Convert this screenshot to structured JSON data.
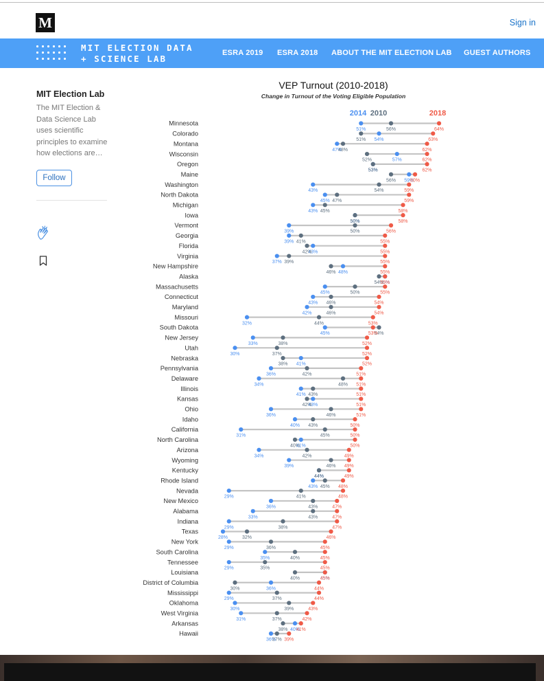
{
  "header": {
    "logo_letter": "M",
    "sign_in": "Sign in"
  },
  "publication": {
    "title_line1": "MIT ELECTION DATA",
    "title_line2": "+ SCIENCE LAB",
    "nav": [
      "ESRA 2019",
      "ESRA 2018",
      "ABOUT THE MIT ELECTION LAB",
      "GUEST AUTHORS"
    ]
  },
  "sidebar": {
    "author": "MIT Election Lab",
    "bio": "The MIT Election & Data Science Lab uses scientific principles to examine how elections are…",
    "follow": "Follow",
    "clap_icon": "clap-icon",
    "bookmark_icon": "bookmark-icon"
  },
  "colors": {
    "accent": "#4ea0f7",
    "y2014": "#4a8ff0",
    "y2010": "#5d6f7f",
    "y2018": "#ef5a47",
    "connector": "#c4c4c4"
  },
  "chart_data": {
    "type": "dot-range",
    "title": "VEP Turnout (2010-2018)",
    "subtitle": "Change in Turnout of the Voting Eligible Population",
    "legend": [
      {
        "name": "2014",
        "color": "#4a8ff0"
      },
      {
        "name": "2010",
        "color": "#5d6f7f"
      },
      {
        "name": "2018",
        "color": "#ef5a47"
      }
    ],
    "series_keys": [
      "y2014",
      "y2010",
      "y2018"
    ],
    "rows": [
      {
        "state": "Minnesota",
        "y2014": 51,
        "y2010": 56,
        "y2018": 64
      },
      {
        "state": "Colorado",
        "y2014": 54,
        "y2010": 51,
        "y2018": 63
      },
      {
        "state": "Montana",
        "y2014": 47,
        "y2010": 48,
        "y2018": 62
      },
      {
        "state": "Wisconsin",
        "y2014": 57,
        "y2010": 52,
        "y2018": 62
      },
      {
        "state": "Oregon",
        "y2014": 53,
        "y2010": 53,
        "y2018": 62
      },
      {
        "state": "Maine",
        "y2014": 59,
        "y2010": 56,
        "y2018": 60
      },
      {
        "state": "Washington",
        "y2014": 43,
        "y2010": 54,
        "y2018": 59
      },
      {
        "state": "North Dakota",
        "y2014": 45,
        "y2010": 47,
        "y2018": 59
      },
      {
        "state": "Michigan",
        "y2014": 43,
        "y2010": 45,
        "y2018": 58
      },
      {
        "state": "Iowa",
        "y2014": 50,
        "y2010": 50,
        "y2018": 58
      },
      {
        "state": "Vermont",
        "y2014": 39,
        "y2010": 50,
        "y2018": 56
      },
      {
        "state": "Georgia",
        "y2014": 39,
        "y2010": 41,
        "y2018": 55
      },
      {
        "state": "Florida",
        "y2014": 43,
        "y2010": 42,
        "y2018": 55
      },
      {
        "state": "Virginia",
        "y2014": 37,
        "y2010": 39,
        "y2018": 55
      },
      {
        "state": "New Hampshire",
        "y2014": 48,
        "y2010": 46,
        "y2018": 55
      },
      {
        "state": "Alaska",
        "y2014": 55,
        "y2010": 54,
        "y2018": 55
      },
      {
        "state": "Massachusetts",
        "y2014": 45,
        "y2010": 50,
        "y2018": 55
      },
      {
        "state": "Connecticut",
        "y2014": 43,
        "y2010": 46,
        "y2018": 54
      },
      {
        "state": "Maryland",
        "y2014": 42,
        "y2010": 46,
        "y2018": 54
      },
      {
        "state": "Missouri",
        "y2014": 32,
        "y2010": 44,
        "y2018": 53
      },
      {
        "state": "South Dakota",
        "y2014": 45,
        "y2010": 54,
        "y2018": 53
      },
      {
        "state": "New Jersey",
        "y2014": 33,
        "y2010": 38,
        "y2018": 52
      },
      {
        "state": "Utah",
        "y2014": 30,
        "y2010": 37,
        "y2018": 52
      },
      {
        "state": "Nebraska",
        "y2014": 41,
        "y2010": 38,
        "y2018": 52
      },
      {
        "state": "Pennsylvania",
        "y2014": 36,
        "y2010": 42,
        "y2018": 51
      },
      {
        "state": "Delaware",
        "y2014": 34,
        "y2010": 48,
        "y2018": 51
      },
      {
        "state": "Illinois",
        "y2014": 41,
        "y2010": 43,
        "y2018": 51
      },
      {
        "state": "Kansas",
        "y2014": 43,
        "y2010": 42,
        "y2018": 51
      },
      {
        "state": "Ohio",
        "y2014": 36,
        "y2010": 46,
        "y2018": 51
      },
      {
        "state": "Idaho",
        "y2014": 40,
        "y2010": 43,
        "y2018": 50
      },
      {
        "state": "California",
        "y2014": 31,
        "y2010": 45,
        "y2018": 50
      },
      {
        "state": "North Carolina",
        "y2014": 41,
        "y2010": 40,
        "y2018": 50
      },
      {
        "state": "Arizona",
        "y2014": 34,
        "y2010": 42,
        "y2018": 49
      },
      {
        "state": "Wyoming",
        "y2014": 39,
        "y2010": 46,
        "y2018": 49
      },
      {
        "state": "Kentucky",
        "y2014": 44,
        "y2010": 44,
        "y2018": 49
      },
      {
        "state": "Rhode Island",
        "y2014": 43,
        "y2010": 45,
        "y2018": 48
      },
      {
        "state": "Nevada",
        "y2014": 29,
        "y2010": 41,
        "y2018": 48
      },
      {
        "state": "New Mexico",
        "y2014": 36,
        "y2010": 43,
        "y2018": 47
      },
      {
        "state": "Alabama",
        "y2014": 33,
        "y2010": 43,
        "y2018": 47
      },
      {
        "state": "Indiana",
        "y2014": 29,
        "y2010": 38,
        "y2018": 47
      },
      {
        "state": "Texas",
        "y2014": 28,
        "y2010": 32,
        "y2018": 46
      },
      {
        "state": "New York",
        "y2014": 29,
        "y2010": 36,
        "y2018": 45
      },
      {
        "state": "South Carolina",
        "y2014": 35,
        "y2010": 40,
        "y2018": 45
      },
      {
        "state": "Tennessee",
        "y2014": 29,
        "y2010": 35,
        "y2018": 45
      },
      {
        "state": "Louisiana",
        "y2014": 45,
        "y2010": 40,
        "y2018": 45
      },
      {
        "state": "District of Columbia",
        "y2014": 36,
        "y2010": 30,
        "y2018": 44
      },
      {
        "state": "Mississippi",
        "y2014": 29,
        "y2010": 37,
        "y2018": 44
      },
      {
        "state": "Oklahoma",
        "y2014": 30,
        "y2010": 39,
        "y2018": 43
      },
      {
        "state": "West Virginia",
        "y2014": 31,
        "y2010": 37,
        "y2018": 42
      },
      {
        "state": "Arkansas",
        "y2014": 40,
        "y2010": 38,
        "y2018": 41
      },
      {
        "state": "Hawaii",
        "y2014": 36,
        "y2010": 37,
        "y2018": 39
      }
    ]
  }
}
